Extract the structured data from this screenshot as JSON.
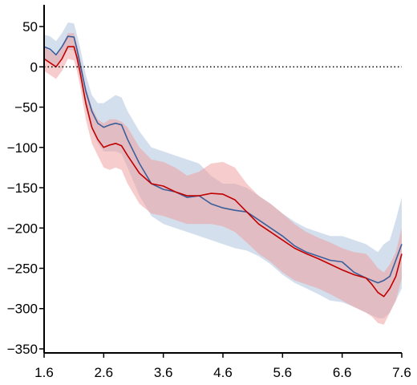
{
  "chart_data": {
    "type": "line",
    "title": "",
    "xlabel": "",
    "ylabel": "",
    "xlim": [
      1.6,
      7.6
    ],
    "ylim": [
      -355,
      75
    ],
    "x_ticks": [
      1.6,
      2.6,
      3.6,
      4.6,
      5.6,
      6.6,
      7.6
    ],
    "x_tick_labels": [
      "1.6",
      "2.6",
      "3.6",
      "4.6",
      "5.6",
      "6.6",
      "7.6"
    ],
    "y_ticks": [
      50,
      0,
      -50,
      -100,
      -150,
      -200,
      -250,
      -300,
      -350
    ],
    "y_tick_labels": [
      "50",
      "0",
      "−50",
      "−100",
      "−150",
      "−200",
      "−250",
      "−300",
      "−350"
    ],
    "grid": false,
    "legend": "none",
    "reference_line": {
      "y": 0,
      "style": "dotted",
      "color": "#000000"
    },
    "series": [
      {
        "color": "#3c5f9a",
        "band_color": "#a9bfdc",
        "x": [
          1.6,
          1.7,
          1.8,
          1.9,
          2.0,
          2.1,
          2.15,
          2.2,
          2.3,
          2.4,
          2.5,
          2.6,
          2.7,
          2.8,
          2.9,
          3.0,
          3.2,
          3.4,
          3.6,
          3.8,
          4.0,
          4.2,
          4.4,
          4.6,
          4.8,
          5.0,
          5.2,
          5.4,
          5.6,
          5.8,
          6.0,
          6.2,
          6.4,
          6.6,
          6.8,
          7.0,
          7.2,
          7.3,
          7.4,
          7.5,
          7.6
        ],
        "y": [
          25,
          22,
          15,
          25,
          38,
          37,
          22,
          5,
          -30,
          -55,
          -70,
          -75,
          -72,
          -70,
          -72,
          -90,
          -120,
          -145,
          -152,
          -155,
          -162,
          -160,
          -170,
          -175,
          -178,
          -180,
          -190,
          -200,
          -210,
          -222,
          -230,
          -235,
          -240,
          -242,
          -255,
          -262,
          -268,
          -265,
          -260,
          -240,
          -220
        ],
        "upper": [
          40,
          38,
          32,
          42,
          55,
          54,
          40,
          25,
          -10,
          -35,
          -45,
          -45,
          -40,
          -35,
          -38,
          -55,
          -80,
          -100,
          -105,
          -110,
          -115,
          -120,
          -135,
          -145,
          -145,
          -150,
          -160,
          -170,
          -182,
          -192,
          -200,
          -205,
          -210,
          -210,
          -215,
          -220,
          -230,
          -220,
          -215,
          -190,
          -162
        ],
        "lower": [
          10,
          5,
          0,
          10,
          22,
          20,
          5,
          -15,
          -52,
          -78,
          -95,
          -105,
          -105,
          -105,
          -108,
          -125,
          -160,
          -185,
          -195,
          -200,
          -205,
          -210,
          -215,
          -220,
          -225,
          -228,
          -235,
          -245,
          -258,
          -268,
          -275,
          -282,
          -290,
          -292,
          -298,
          -305,
          -312,
          -312,
          -305,
          -290,
          -275
        ]
      },
      {
        "color": "#c00000",
        "band_color": "#ef9a9a",
        "x": [
          1.6,
          1.7,
          1.8,
          1.9,
          2.0,
          2.1,
          2.15,
          2.2,
          2.3,
          2.4,
          2.5,
          2.6,
          2.7,
          2.8,
          2.9,
          3.0,
          3.2,
          3.4,
          3.6,
          3.8,
          4.0,
          4.2,
          4.4,
          4.6,
          4.8,
          5.0,
          5.2,
          5.4,
          5.6,
          5.8,
          6.0,
          6.2,
          6.4,
          6.6,
          6.8,
          7.0,
          7.1,
          7.2,
          7.3,
          7.4,
          7.5,
          7.6
        ],
        "y": [
          10,
          5,
          0,
          10,
          25,
          25,
          12,
          -5,
          -45,
          -75,
          -90,
          -100,
          -97,
          -95,
          -98,
          -110,
          -132,
          -145,
          -148,
          -155,
          -160,
          -160,
          -157,
          -158,
          -165,
          -180,
          -195,
          -205,
          -215,
          -225,
          -232,
          -238,
          -245,
          -252,
          -258,
          -262,
          -270,
          -280,
          -285,
          -275,
          -260,
          -232
        ],
        "upper": [
          25,
          20,
          15,
          25,
          42,
          42,
          28,
          12,
          -25,
          -50,
          -65,
          -70,
          -65,
          -65,
          -68,
          -75,
          -100,
          -115,
          -118,
          -125,
          -135,
          -130,
          -120,
          -118,
          -125,
          -145,
          -160,
          -170,
          -182,
          -195,
          -205,
          -212,
          -218,
          -225,
          -230,
          -232,
          -240,
          -250,
          -255,
          -245,
          -230,
          -200
        ],
        "lower": [
          -5,
          -10,
          -15,
          -5,
          10,
          8,
          -5,
          -22,
          -65,
          -95,
          -110,
          -125,
          -128,
          -125,
          -128,
          -145,
          -170,
          -182,
          -185,
          -190,
          -195,
          -195,
          -195,
          -198,
          -205,
          -218,
          -232,
          -242,
          -255,
          -265,
          -270,
          -275,
          -282,
          -290,
          -298,
          -305,
          -310,
          -318,
          -320,
          -305,
          -290,
          -262
        ]
      }
    ]
  }
}
